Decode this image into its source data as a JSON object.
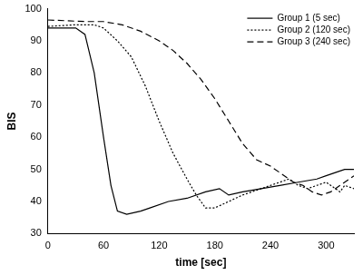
{
  "chart_data": {
    "type": "line",
    "x_label": "time [sec]",
    "y_label": "BIS",
    "xlim": [
      0,
      330
    ],
    "xticks": [
      0,
      60,
      120,
      180,
      240,
      300
    ],
    "ylim": [
      30,
      100
    ],
    "yticks": [
      30,
      40,
      50,
      60,
      70,
      80,
      90,
      100
    ],
    "grid": false,
    "legend": "upper right",
    "series": [
      {
        "name": "Group 1 (5 sec)",
        "color": "#000000",
        "line_style": "solid",
        "x": [
          0,
          15,
          30,
          40,
          50,
          60,
          68,
          75,
          85,
          100,
          110,
          130,
          150,
          170,
          185,
          195,
          210,
          230,
          250,
          270,
          290,
          300,
          310,
          320,
          330
        ],
        "values": [
          94,
          94,
          94,
          92,
          80,
          60,
          45,
          37,
          36,
          37,
          38,
          40,
          41,
          43,
          44,
          42,
          43,
          44,
          45,
          46,
          47,
          48,
          49,
          50,
          50
        ]
      },
      {
        "name": "Group 2 (120 sec)",
        "color": "#000000",
        "line_style": "dotted",
        "x": [
          0,
          30,
          50,
          60,
          75,
          90,
          105,
          120,
          135,
          150,
          160,
          170,
          180,
          195,
          210,
          230,
          250,
          260,
          270,
          280,
          290,
          300,
          310,
          315,
          320,
          330
        ],
        "values": [
          94.5,
          95,
          95,
          94,
          90,
          85,
          76,
          65,
          55,
          47,
          42,
          38,
          38,
          40,
          42,
          44,
          46,
          47,
          45,
          44,
          45,
          46,
          44,
          43,
          45,
          44
        ]
      },
      {
        "name": "Group 3 (240 sec)",
        "color": "#000000",
        "line_style": "dashed",
        "x": [
          0,
          40,
          60,
          80,
          100,
          120,
          135,
          150,
          165,
          180,
          195,
          210,
          225,
          240,
          255,
          265,
          275,
          285,
          295,
          305,
          315,
          325,
          330
        ],
        "values": [
          96.5,
          96,
          96,
          95,
          93,
          90,
          87,
          83,
          78,
          72,
          65,
          58,
          53,
          51,
          48,
          46,
          45,
          43,
          42,
          43,
          45,
          47,
          48
        ]
      }
    ]
  }
}
